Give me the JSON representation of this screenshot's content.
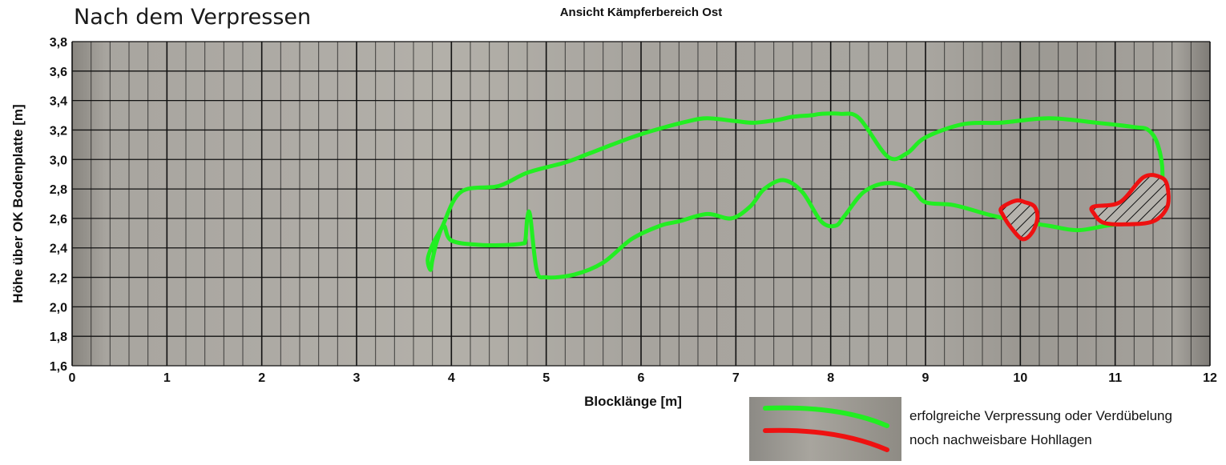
{
  "page_title": "Nach dem Verpressen",
  "chart_data": {
    "type": "line",
    "title": "Ansicht Kämpferbereich Ost",
    "xlabel": "Blocklänge [m]",
    "ylabel": "Höhe über OK Bodenplatte [m]",
    "xlim": [
      0,
      12
    ],
    "ylim": [
      1.6,
      3.8
    ],
    "x_ticks": [
      "0",
      "1",
      "2",
      "3",
      "4",
      "5",
      "6",
      "7",
      "8",
      "9",
      "10",
      "11",
      "12"
    ],
    "y_ticks": [
      "1,6",
      "1,8",
      "2,0",
      "2,2",
      "2,4",
      "2,6",
      "2,8",
      "3,0",
      "3,2",
      "3,4",
      "3,6",
      "3,8"
    ],
    "grid": true,
    "fine_grid_step_x": 0.2,
    "background": "photograph of concrete wall (grey)",
    "series": [
      {
        "name": "erfolgreiche Verpressung oder Verdübelung",
        "color": "#22ee22",
        "closed": true,
        "x": [
          3.78,
          3.75,
          3.8,
          3.9,
          4.1,
          4.5,
          4.8,
          5.2,
          5.45,
          5.9,
          6.2,
          6.5,
          6.7,
          7.0,
          7.2,
          7.45,
          7.6,
          7.8,
          7.9,
          8.1,
          8.3,
          8.6,
          8.8,
          9.0,
          9.4,
          9.8,
          10.3,
          10.8,
          11.2,
          11.35,
          11.45,
          11.5,
          11.45,
          11.2,
          10.9,
          10.6,
          10.3,
          10.0,
          9.7,
          9.3,
          9.0,
          8.85,
          8.6,
          8.35,
          8.15,
          8.05,
          7.9,
          7.7,
          7.5,
          7.3,
          7.15,
          6.95,
          6.7,
          6.4,
          6.2,
          5.9,
          5.6,
          5.3,
          5.0,
          4.9,
          4.83,
          4.8,
          4.78,
          4.75,
          4.6,
          4.3,
          4.0,
          3.92,
          3.85,
          3.8
        ],
        "y": [
          2.25,
          2.32,
          2.42,
          2.54,
          2.78,
          2.82,
          2.91,
          2.98,
          3.04,
          3.15,
          3.21,
          3.26,
          3.28,
          3.26,
          3.25,
          3.27,
          3.29,
          3.3,
          3.31,
          3.31,
          3.28,
          3.02,
          3.04,
          3.15,
          3.24,
          3.25,
          3.28,
          3.25,
          3.22,
          3.2,
          3.1,
          2.9,
          2.64,
          2.58,
          2.55,
          2.52,
          2.55,
          2.58,
          2.62,
          2.69,
          2.71,
          2.8,
          2.84,
          2.78,
          2.62,
          2.55,
          2.58,
          2.78,
          2.86,
          2.8,
          2.68,
          2.6,
          2.63,
          2.58,
          2.55,
          2.46,
          2.3,
          2.22,
          2.2,
          2.25,
          2.62,
          2.6,
          2.45,
          2.43,
          2.42,
          2.42,
          2.45,
          2.55,
          2.45,
          2.32
        ]
      },
      {
        "name": "noch nachweisbare Hohllagen",
        "color": "#ee1111",
        "closed": true,
        "x": [
          9.95,
          10.05,
          10.15,
          10.18,
          10.12,
          10.02,
          9.9,
          9.82,
          9.8
        ],
        "y": [
          2.72,
          2.71,
          2.68,
          2.6,
          2.5,
          2.46,
          2.54,
          2.62,
          2.67
        ]
      },
      {
        "name": "noch nachweisbare Hohllagen",
        "color": "#ee1111",
        "closed": true,
        "x": [
          10.77,
          11.05,
          11.3,
          11.48,
          11.55,
          11.55,
          11.4,
          11.1,
          10.88,
          10.78
        ],
        "y": [
          2.68,
          2.71,
          2.88,
          2.88,
          2.82,
          2.68,
          2.58,
          2.56,
          2.57,
          2.63
        ]
      }
    ],
    "hatched_regions": [
      1,
      2
    ],
    "legend": {
      "position": "bottom-right",
      "items": [
        {
          "label": "erfolgreiche Verpressung oder Verdübelung",
          "color": "#22ee22"
        },
        {
          "label": "noch nachweisbare Hohllagen",
          "color": "#ee1111"
        }
      ]
    }
  }
}
